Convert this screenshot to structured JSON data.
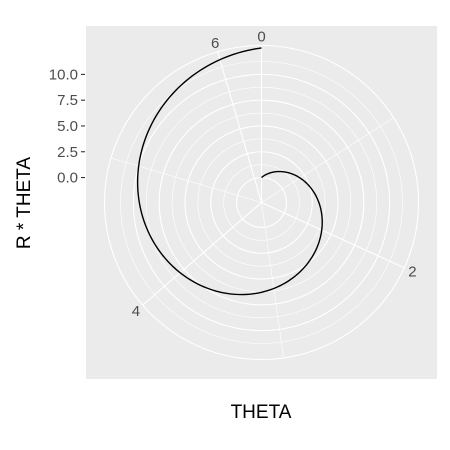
{
  "chart_data": {
    "type": "line",
    "coord": "polar",
    "xlabel": "THETA",
    "ylabel": "R * THETA",
    "theta_ticks": [
      0,
      2,
      4,
      6
    ],
    "theta_range": [
      0,
      6.2832
    ],
    "r_ticks": [
      "0.0",
      "2.5",
      "5.0",
      "7.5",
      "10.0"
    ],
    "r_tick_values": [
      0,
      2.5,
      5,
      7.5,
      10
    ],
    "r_range": [
      -2.42,
      12.8
    ],
    "grid": true,
    "panel_background": "#ebebeb",
    "grid_color": "#ffffff",
    "line_color": "#000000",
    "series": [
      {
        "x_formula": "theta",
        "y_formula": "2 * theta",
        "x_range": [
          0,
          6.2832
        ],
        "samples": 200
      }
    ]
  }
}
